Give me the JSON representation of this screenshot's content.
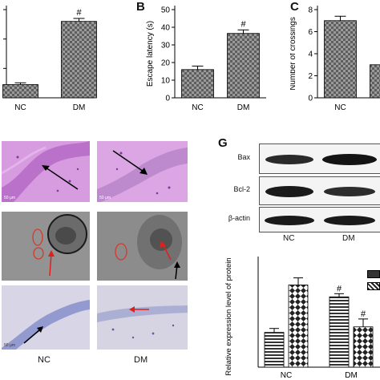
{
  "panels": {
    "B": "B",
    "C": "C",
    "G": "G"
  },
  "colors": {
    "he_bg": "#d79be0",
    "he_dark": "#b56ac6",
    "tem_bg": "#8a8a8a",
    "nissl_bg": "#d8d6e6",
    "nissl_band": "#8c93cc",
    "arrow_black": "#000000",
    "arrow_red": "#e0201c"
  },
  "micrographs": {
    "columns": [
      "NC",
      "DM"
    ],
    "scale_label": "50 μm"
  },
  "blot": {
    "rows": [
      "Bax",
      "Bcl-2",
      "β-actin"
    ],
    "lanes": [
      "NC",
      "DM"
    ]
  },
  "chart_data": [
    {
      "id": "A",
      "type": "bar",
      "categories": [
        "NC",
        "DM"
      ],
      "values": [
        4.5,
        26
      ],
      "errors": [
        0.6,
        1.0
      ],
      "annotations": [
        "",
        "#"
      ],
      "ylim": [
        0,
        30
      ],
      "pattern": "checker"
    },
    {
      "id": "B",
      "type": "bar",
      "categories": [
        "NC",
        "DM"
      ],
      "values": [
        16,
        36.5
      ],
      "errors": [
        2.0,
        2.0
      ],
      "annotations": [
        "",
        "#"
      ],
      "ylabel": "Escape latency (s)",
      "ylim": [
        0,
        50
      ],
      "yticks": [
        0,
        10,
        20,
        30,
        40,
        50
      ],
      "pattern": "checker"
    },
    {
      "id": "C",
      "type": "bar",
      "categories": [
        "NC",
        "DM"
      ],
      "values": [
        7.0,
        3.0
      ],
      "errors": [
        0.4,
        0
      ],
      "annotations": [
        "",
        ""
      ],
      "ylabel": "Number of crossings",
      "ylim": [
        0,
        8
      ],
      "yticks": [
        0,
        2,
        4,
        6,
        8
      ],
      "pattern": "checker"
    },
    {
      "id": "G",
      "type": "bar",
      "categories": [
        "NC",
        "DM"
      ],
      "series": [
        {
          "values": [
            0.44,
            0.89
          ],
          "errors": [
            0.05,
            0.04
          ],
          "annotations": [
            "",
            "#"
          ]
        },
        {
          "values": [
            1.04,
            0.51
          ],
          "errors": [
            0.09,
            0.1
          ],
          "annotations": [
            "",
            "#"
          ]
        }
      ],
      "ylabel": "Relative expression level of protein",
      "ylim": [
        0,
        1.4
      ]
    }
  ]
}
